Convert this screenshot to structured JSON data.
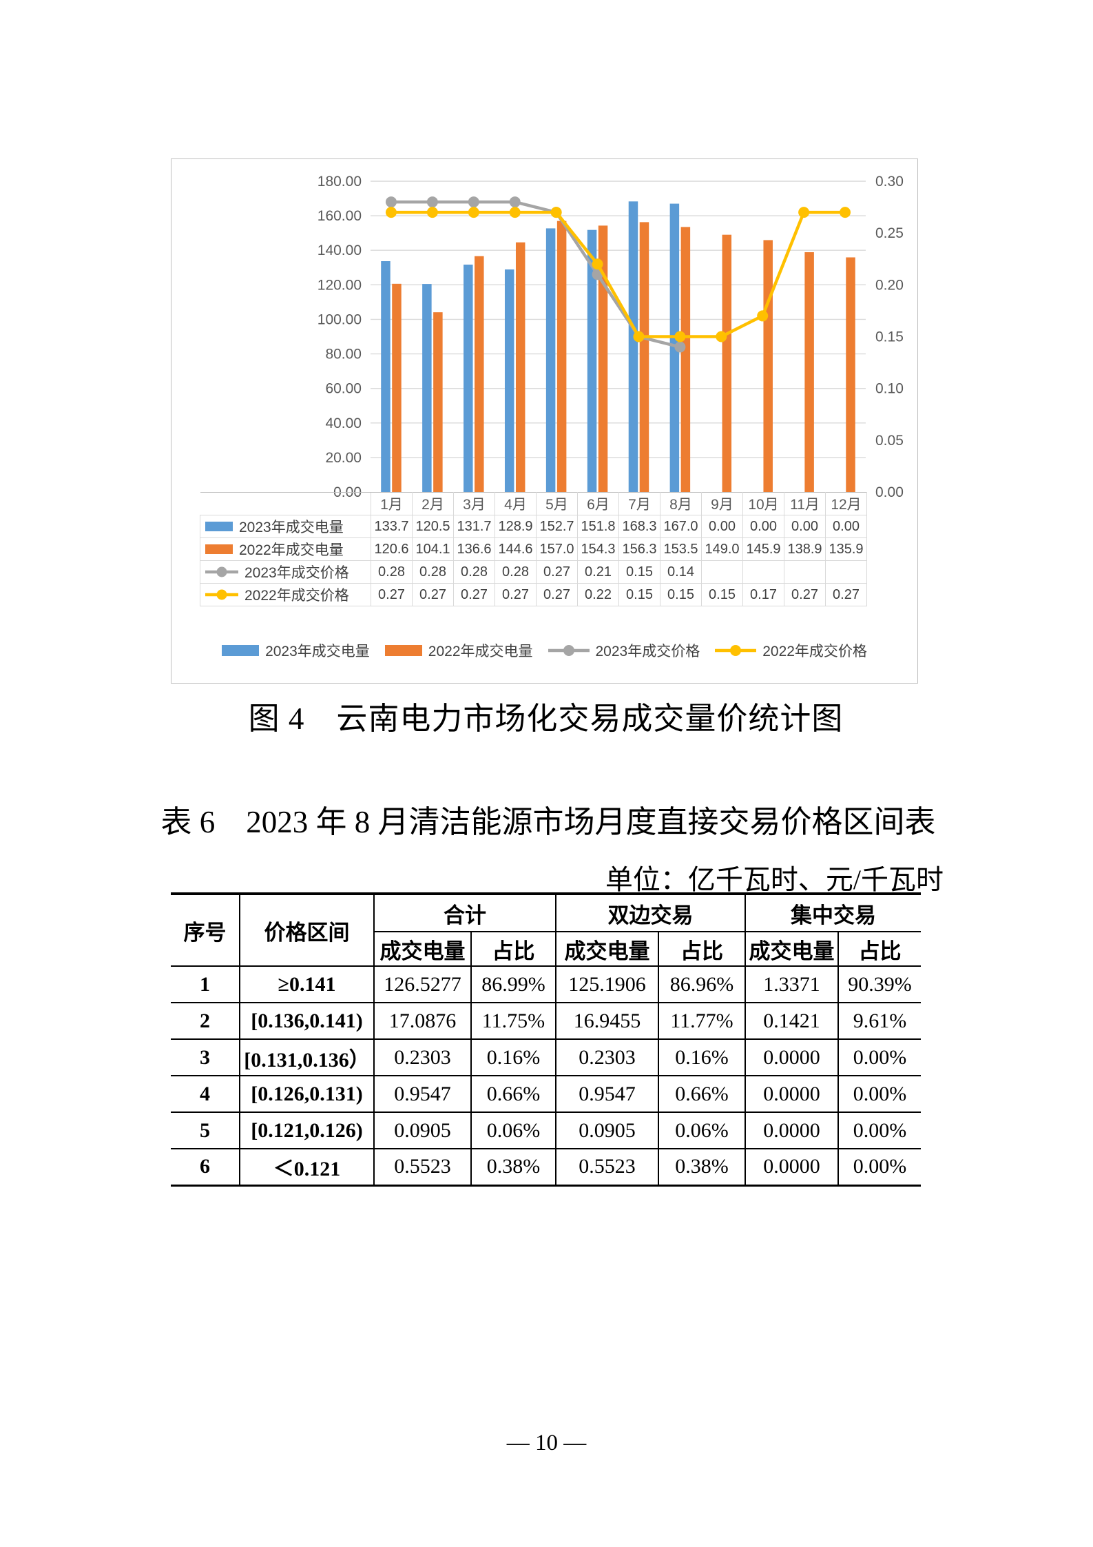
{
  "figure": {
    "caption": "图 4　云南电力市场化交易成交量价统计图"
  },
  "chart_data": {
    "type": "combo_bar_line",
    "categories": [
      "1月",
      "2月",
      "3月",
      "4月",
      "5月",
      "6月",
      "7月",
      "8月",
      "9月",
      "10月",
      "11月",
      "12月"
    ],
    "series": [
      {
        "name": "2023年成交电量",
        "type": "bar",
        "axis": "left",
        "color": "#5B9BD5",
        "values": [
          133.7,
          120.5,
          131.7,
          128.9,
          152.7,
          151.8,
          168.3,
          167.0,
          0,
          0,
          0,
          0
        ],
        "labels": [
          "133.7",
          "120.5",
          "131.7",
          "128.9",
          "152.7",
          "151.8",
          "168.3",
          "167.0",
          "0.00",
          "0.00",
          "0.00",
          "0.00"
        ]
      },
      {
        "name": "2022年成交电量",
        "type": "bar",
        "axis": "left",
        "color": "#ED7D31",
        "values": [
          120.6,
          104.1,
          136.6,
          144.6,
          157.0,
          154.3,
          156.3,
          153.5,
          149.0,
          145.9,
          138.9,
          135.9
        ],
        "labels": [
          "120.6",
          "104.1",
          "136.6",
          "144.6",
          "157.0",
          "154.3",
          "156.3",
          "153.5",
          "149.0",
          "145.9",
          "138.9",
          "135.9"
        ]
      },
      {
        "name": "2023年成交价格",
        "type": "line",
        "axis": "right",
        "color": "#A5A5A5",
        "values": [
          0.28,
          0.28,
          0.28,
          0.28,
          0.27,
          0.21,
          0.15,
          0.14,
          null,
          null,
          null,
          null
        ],
        "labels": [
          "0.28",
          "0.28",
          "0.28",
          "0.28",
          "0.27",
          "0.21",
          "0.15",
          "0.14",
          "",
          "",
          "",
          ""
        ]
      },
      {
        "name": "2022年成交价格",
        "type": "line",
        "axis": "right",
        "color": "#FFC000",
        "values": [
          0.27,
          0.27,
          0.27,
          0.27,
          0.27,
          0.22,
          0.15,
          0.15,
          0.15,
          0.17,
          0.27,
          0.27
        ],
        "labels": [
          "0.27",
          "0.27",
          "0.27",
          "0.27",
          "0.27",
          "0.22",
          "0.15",
          "0.15",
          "0.15",
          "0.17",
          "0.27",
          "0.27"
        ]
      }
    ],
    "left_axis": {
      "min": 0,
      "max": 180,
      "step": 20,
      "tick_labels": [
        "0.00",
        "20.00",
        "40.00",
        "60.00",
        "80.00",
        "100.00",
        "120.00",
        "140.00",
        "160.00",
        "180.00"
      ]
    },
    "right_axis": {
      "min": 0,
      "max": 0.3,
      "step": 0.05,
      "tick_labels": [
        "0.00",
        "0.05",
        "0.10",
        "0.15",
        "0.20",
        "0.25",
        "0.30"
      ]
    },
    "legend_position": "bottom",
    "data_table_shown": true,
    "grid": true,
    "colors": {
      "grid": "#d9d9d9",
      "axis_line": "#bfbfbf",
      "axis_text": "#595959"
    }
  },
  "table6": {
    "title": "表 6　2023 年 8 月清洁能源市场月度直接交易价格区间表",
    "unit": "单位：亿千瓦时、元/千瓦时",
    "header": {
      "index": "序号",
      "range": "价格区间",
      "groups": [
        "合计",
        "双边交易",
        "集中交易"
      ],
      "sub": [
        "成交电量",
        "占比"
      ]
    },
    "rows": [
      [
        "1",
        "≥0.141",
        "126.5277",
        "86.99%",
        "125.1906",
        "86.96%",
        "1.3371",
        "90.39%"
      ],
      [
        "2",
        "[0.136,0.141)",
        "17.0876",
        "11.75%",
        "16.9455",
        "11.77%",
        "0.1421",
        "9.61%"
      ],
      [
        "3",
        "[0.131,0.136）",
        "0.2303",
        "0.16%",
        "0.2303",
        "0.16%",
        "0.0000",
        "0.00%"
      ],
      [
        "4",
        "[0.126,0.131)",
        "0.9547",
        "0.66%",
        "0.9547",
        "0.66%",
        "0.0000",
        "0.00%"
      ],
      [
        "5",
        "[0.121,0.126)",
        "0.0905",
        "0.06%",
        "0.0905",
        "0.06%",
        "0.0000",
        "0.00%"
      ],
      [
        "6",
        "＜0.121",
        "0.5523",
        "0.38%",
        "0.5523",
        "0.38%",
        "0.0000",
        "0.00%"
      ]
    ]
  },
  "page": {
    "number": "— 10 —"
  }
}
